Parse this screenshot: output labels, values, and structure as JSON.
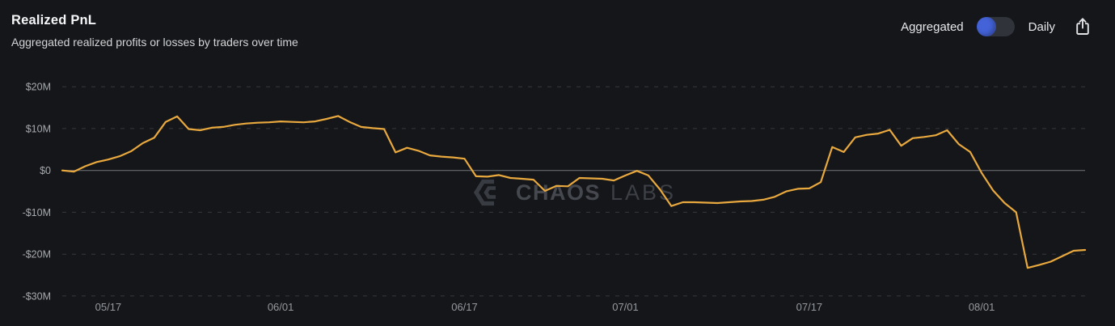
{
  "header": {
    "title": "Realized PnL",
    "subtitle": "Aggregated realized profits or losses by traders over time"
  },
  "controls": {
    "left_label": "Aggregated",
    "right_label": "Daily",
    "selected_option": "Aggregated",
    "toggle_knob_color": "#4463d8",
    "export_icon": "share-export-icon"
  },
  "watermark": {
    "logo": "chaos-labs-logo",
    "text_bold": "CHAOS",
    "text_light": "LABS"
  },
  "chart_data": {
    "type": "line",
    "title": "Realized PnL",
    "unit": "USD millions",
    "line_color": "#e9a93f",
    "grid_color": "#36393f",
    "zero_line_color": "#73767b",
    "grid_style": "dashed",
    "legend": "none",
    "ylim": [
      -30,
      20
    ],
    "y_ticks": [
      {
        "label": "$20M",
        "value": 20
      },
      {
        "label": "$10M",
        "value": 10
      },
      {
        "label": "$0",
        "value": 0
      },
      {
        "label": "-$10M",
        "value": -10
      },
      {
        "label": "-$20M",
        "value": -20
      },
      {
        "label": "-$30M",
        "value": -30
      }
    ],
    "x_ticks": [
      {
        "label": "05/17",
        "index": 4
      },
      {
        "label": "06/01",
        "index": 19
      },
      {
        "label": "06/17",
        "index": 35
      },
      {
        "label": "07/01",
        "index": 49
      },
      {
        "label": "07/17",
        "index": 65
      },
      {
        "label": "08/01",
        "index": 80
      }
    ],
    "values": [
      0,
      -0.3,
      1.0,
      2.0,
      2.6,
      3.4,
      4.6,
      6.5,
      7.8,
      11.6,
      12.9,
      9.9,
      9.6,
      10.2,
      10.4,
      10.9,
      11.2,
      11.4,
      11.5,
      11.7,
      11.6,
      11.5,
      11.7,
      12.3,
      13.0,
      11.6,
      10.4,
      10.1,
      9.9,
      4.3,
      5.4,
      4.7,
      3.6,
      3.3,
      3.1,
      2.8,
      -1.4,
      -1.5,
      -1.1,
      -1.8,
      -2.0,
      -2.2,
      -4.9,
      -3.7,
      -3.8,
      -1.8,
      -1.9,
      -2.0,
      -2.4,
      -1.2,
      -0.1,
      -1.2,
      -4.5,
      -8.5,
      -7.6,
      -7.6,
      -7.7,
      -7.8,
      -7.6,
      -7.4,
      -7.3,
      -7.0,
      -6.3,
      -5.0,
      -4.4,
      -4.3,
      -2.8,
      5.6,
      4.4,
      7.9,
      8.5,
      8.8,
      9.7,
      5.9,
      7.7,
      8.0,
      8.4,
      9.6,
      6.3,
      4.4,
      -0.6,
      -4.8,
      -7.8,
      -10.0,
      -23.3,
      -22.6,
      -21.8,
      -20.5,
      -19.2,
      -19.0
    ]
  }
}
